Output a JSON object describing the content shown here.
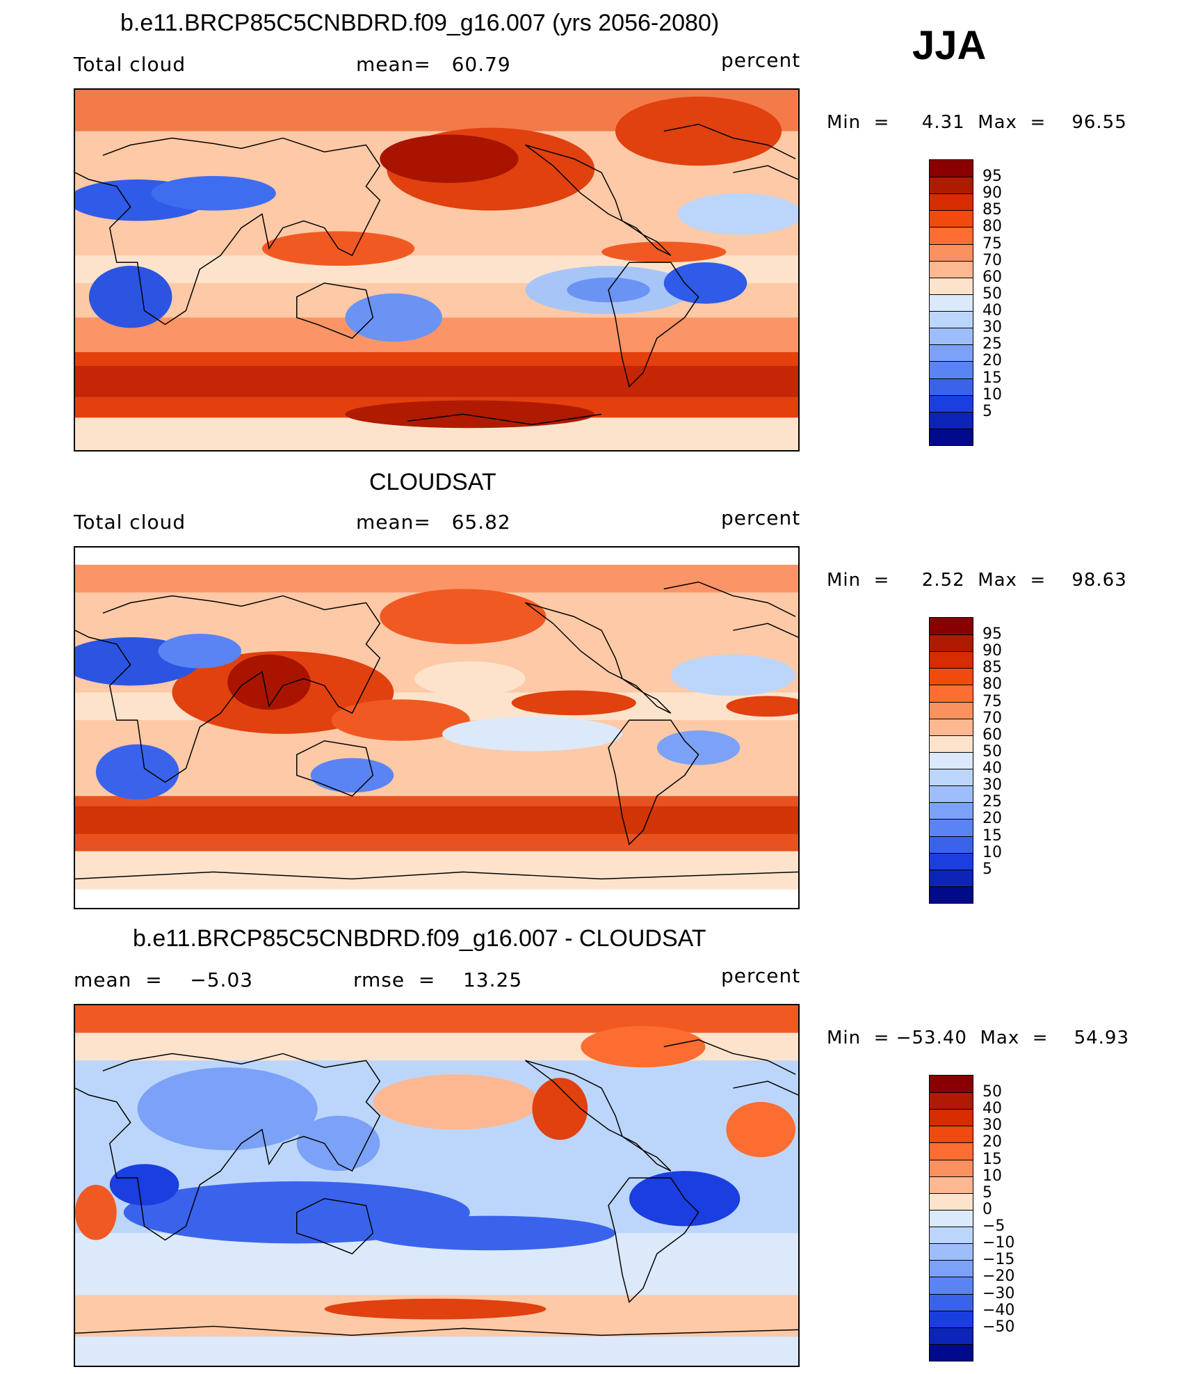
{
  "season": "JJA",
  "panels": [
    {
      "id": "model",
      "title": "b.e11.BRCP85C5CNBDRD.f09_g16.007 (yrs 2056-2080)",
      "left_label": "Total cloud",
      "mid_label": "mean=   60.79",
      "right_label": "percent",
      "minmax": "Min  =     4.31  Max  =    96.55",
      "colorbar_labels": [
        "95",
        "90",
        "85",
        "80",
        "75",
        "70",
        "60",
        "50",
        "40",
        "30",
        "25",
        "20",
        "15",
        "10",
        "5"
      ],
      "colorbar_colors": [
        "#8a0000",
        "#b01a00",
        "#d62c00",
        "#f04a0c",
        "#fb6d30",
        "#fc9160",
        "#fdb891",
        "#fde3cc",
        "#dbe9fb",
        "#bcd6fb",
        "#9dbefa",
        "#7ba2f6",
        "#5a84f3",
        "#3a63ec",
        "#1b3ee0",
        "#0c24b8",
        "#000a8a"
      ]
    },
    {
      "id": "obs",
      "title": "CLOUDSAT",
      "left_label": "Total cloud",
      "mid_label": "mean=   65.82",
      "right_label": "percent",
      "minmax": "Min  =     2.52  Max  =    98.63",
      "colorbar_labels": [
        "95",
        "90",
        "85",
        "80",
        "75",
        "70",
        "60",
        "50",
        "40",
        "30",
        "25",
        "20",
        "15",
        "10",
        "5"
      ],
      "colorbar_colors": [
        "#8a0000",
        "#b01a00",
        "#d62c00",
        "#f04a0c",
        "#fb6d30",
        "#fc9160",
        "#fdb891",
        "#fde3cc",
        "#dbe9fb",
        "#bcd6fb",
        "#9dbefa",
        "#7ba2f6",
        "#5a84f3",
        "#3a63ec",
        "#1b3ee0",
        "#0c24b8",
        "#000a8a"
      ]
    },
    {
      "id": "diff",
      "title": "b.e11.BRCP85C5CNBDRD.f09_g16.007 - CLOUDSAT",
      "left_label": "mean  =    −5.03",
      "mid_label": "rmse  =    13.25",
      "right_label": "percent",
      "minmax": "Min  = −53.40  Max  =    54.93",
      "colorbar_labels": [
        "50",
        "40",
        "30",
        "20",
        "15",
        "10",
        "5",
        "0",
        "−5",
        "−10",
        "−15",
        "−20",
        "−30",
        "−40",
        "−50"
      ],
      "colorbar_colors": [
        "#8a0000",
        "#b01a00",
        "#d62c00",
        "#f04a0c",
        "#fb6d30",
        "#fc9160",
        "#fdb891",
        "#fde3cc",
        "#dbe9fb",
        "#bcd6fb",
        "#9dbefa",
        "#7ba2f6",
        "#5a84f3",
        "#3a63ec",
        "#1b3ee0",
        "#0c24b8",
        "#000a8a"
      ]
    }
  ]
}
